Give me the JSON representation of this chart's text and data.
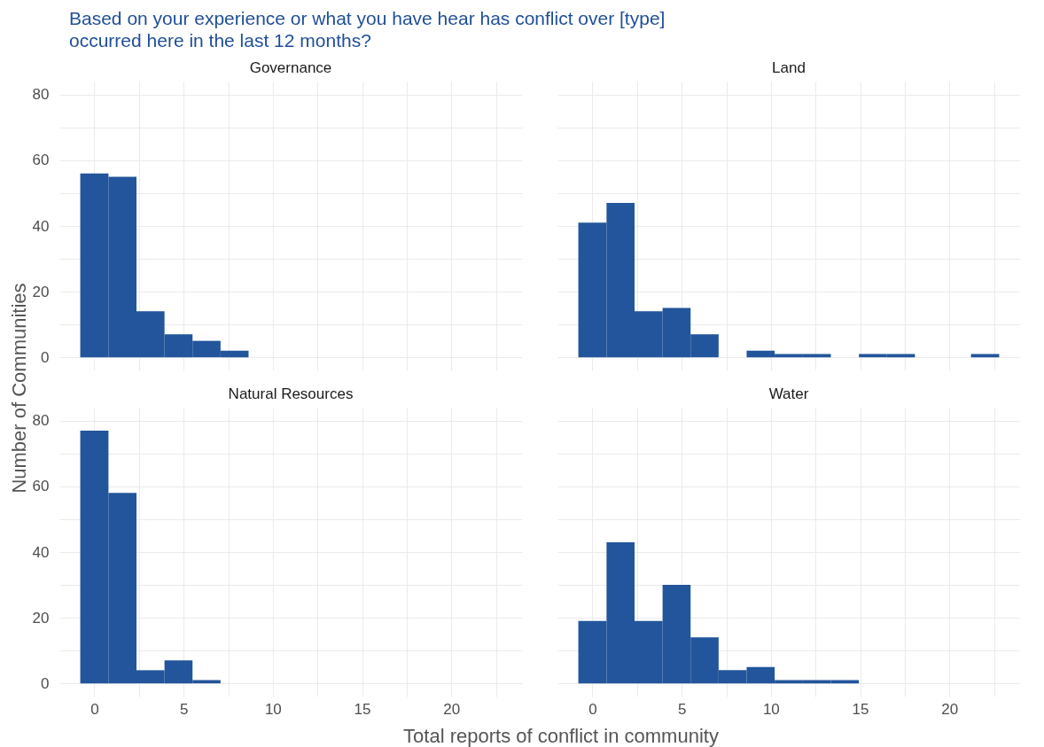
{
  "chart_data": [
    {
      "type": "histogram",
      "title": "Governance",
      "annotations": [
        "Based on your experience or what you have hear has conflict over [type] occurred here in the last 12 months?"
      ],
      "ylabel": "Number of Communities",
      "bins": [
        -0.79,
        0.79,
        2.36,
        3.93,
        5.5,
        7.07,
        8.64,
        10.21,
        11.79,
        13.36,
        14.93,
        16.5,
        18.07,
        19.64,
        21.21,
        22.79
      ],
      "values": [
        56,
        55,
        14,
        7,
        5,
        2,
        0,
        0,
        0,
        0,
        0,
        0,
        0,
        0,
        0
      ],
      "color": "#22559b",
      "xlim": [
        -1.96,
        23.96
      ],
      "ylim": [
        -4,
        84
      ],
      "xticks": [
        0,
        {
          "value": 2.5,
          "label": null
        },
        5,
        {
          "value": 7.5,
          "label": null
        },
        10,
        {
          "value": 12.5,
          "label": null
        },
        15,
        {
          "value": 17.5,
          "label": null
        },
        20,
        {
          "value": 22.5,
          "label": null
        }
      ],
      "yticks": [
        0,
        {
          "value": 10,
          "label": null
        },
        20,
        {
          "value": 30,
          "label": null
        },
        40,
        {
          "value": 50,
          "label": null
        },
        60,
        {
          "value": 70,
          "label": null
        },
        80
      ],
      "grid": true,
      "tick_labels": "y"
    },
    {
      "type": "histogram",
      "title": "Land",
      "bins": [
        -0.79,
        0.79,
        2.36,
        3.93,
        5.5,
        7.07,
        8.64,
        10.21,
        11.79,
        13.36,
        14.93,
        16.5,
        18.07,
        19.64,
        21.21,
        22.79
      ],
      "values": [
        41,
        47,
        14,
        15,
        7,
        0,
        2,
        1,
        1,
        0,
        1,
        1,
        0,
        0,
        1
      ],
      "color": "#22559b",
      "xlim": [
        -1.96,
        23.96
      ],
      "ylim": [
        -4,
        84
      ],
      "xticks": [
        0,
        {
          "value": 2.5,
          "label": null
        },
        5,
        {
          "value": 7.5,
          "label": null
        },
        10,
        {
          "value": 12.5,
          "label": null
        },
        15,
        {
          "value": 17.5,
          "label": null
        },
        20,
        {
          "value": 22.5,
          "label": null
        }
      ],
      "yticks": [
        0,
        {
          "value": 10,
          "label": null
        },
        20,
        {
          "value": 30,
          "label": null
        },
        40,
        {
          "value": 50,
          "label": null
        },
        60,
        {
          "value": 70,
          "label": null
        },
        80
      ],
      "grid": true,
      "tick_labels": false
    },
    {
      "type": "histogram",
      "title": "Natural Resources",
      "xlabel": "Total reports of conflict in community",
      "bins": [
        -0.79,
        0.79,
        2.36,
        3.93,
        5.5,
        7.07,
        8.64,
        10.21,
        11.79,
        13.36,
        14.93,
        16.5,
        18.07,
        19.64,
        21.21,
        22.79
      ],
      "values": [
        77,
        58,
        4,
        7,
        1,
        0,
        0,
        0,
        0,
        0,
        0,
        0,
        0,
        0,
        0
      ],
      "color": "#22559b",
      "xlim": [
        -1.96,
        23.96
      ],
      "ylim": [
        -4,
        84
      ],
      "xticks": [
        0,
        {
          "value": 2.5,
          "label": null
        },
        5,
        {
          "value": 7.5,
          "label": null
        },
        10,
        {
          "value": 12.5,
          "label": null
        },
        15,
        {
          "value": 17.5,
          "label": null
        },
        20,
        {
          "value": 22.5,
          "label": null
        }
      ],
      "yticks": [
        0,
        {
          "value": 10,
          "label": null
        },
        20,
        {
          "value": 30,
          "label": null
        },
        40,
        {
          "value": 50,
          "label": null
        },
        60,
        {
          "value": 70,
          "label": null
        },
        80
      ],
      "grid": true
    },
    {
      "type": "histogram",
      "title": "Water",
      "bins": [
        -0.79,
        0.79,
        2.36,
        3.93,
        5.5,
        7.07,
        8.64,
        10.21,
        11.79,
        13.36,
        14.93,
        16.5,
        18.07,
        19.64,
        21.21,
        22.79
      ],
      "values": [
        19,
        43,
        19,
        30,
        14,
        4,
        5,
        1,
        1,
        1,
        0,
        0,
        0,
        0,
        0
      ],
      "color": "#22559b",
      "xlim": [
        -1.96,
        23.96
      ],
      "ylim": [
        -4,
        84
      ],
      "xticks": [
        0,
        {
          "value": 2.5,
          "label": null
        },
        5,
        {
          "value": 7.5,
          "label": null
        },
        10,
        {
          "value": 12.5,
          "label": null
        },
        15,
        {
          "value": 17.5,
          "label": null
        },
        20,
        {
          "value": 22.5,
          "label": null
        }
      ],
      "yticks": [
        0,
        {
          "value": 10,
          "label": null
        },
        20,
        {
          "value": 30,
          "label": null
        },
        40,
        {
          "value": 50,
          "label": null
        },
        60,
        {
          "value": 70,
          "label": null
        },
        80
      ],
      "grid": true,
      "tick_labels": "x"
    }
  ]
}
